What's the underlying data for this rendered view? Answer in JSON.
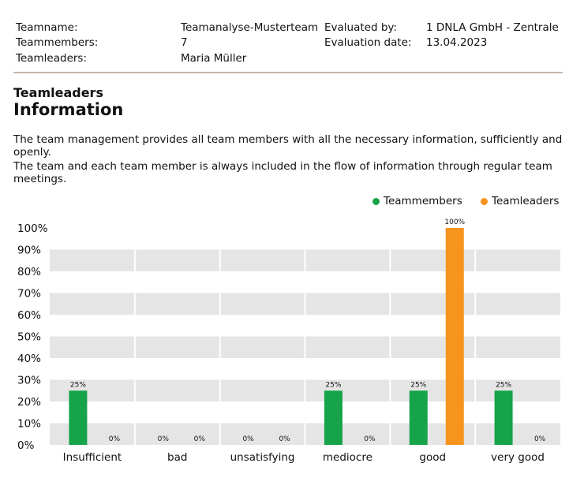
{
  "header": {
    "teamname_label": "Teamname:",
    "teamname_value": "Teamanalyse-Musterteam",
    "members_label": "Teammembers:",
    "members_value": "7",
    "leaders_label": "Teamleaders:",
    "leaders_value": "Maria Müller",
    "evaluated_label": "Evaluated by:",
    "evaluated_value": "1 DNLA GmbH - Zentrale",
    "date_label": "Evaluation date:",
    "date_value": "13.04.2023"
  },
  "section": {
    "subtitle": "Teamleaders",
    "title": "Information",
    "paragraphs": [
      "The team management provides all team members with all the necessary information, sufficiently and openly.",
      "The team and each team member is always included in the flow of information through regular team meetings."
    ]
  },
  "colors": {
    "teammembers": "#16a34a",
    "teamleaders": "#f7941d",
    "band": "#e5e5e5"
  },
  "chart_data": {
    "type": "bar",
    "categories": [
      "Insufficient",
      "bad",
      "unsatisfying",
      "mediocre",
      "good",
      "very good"
    ],
    "series": [
      {
        "name": "Teammembers",
        "values": [
          25,
          0,
          0,
          25,
          25,
          25
        ],
        "labels": [
          "25%",
          "0%",
          "0%",
          "25%",
          "25%",
          "25%"
        ]
      },
      {
        "name": "Teamleaders",
        "values": [
          0,
          0,
          0,
          0,
          100,
          0
        ],
        "labels": [
          "0%",
          "0%",
          "0%",
          "0%",
          "100%",
          "0%"
        ]
      }
    ],
    "ylim": [
      0,
      100
    ],
    "yticks": [
      "0%",
      "10%",
      "20%",
      "30%",
      "40%",
      "50%",
      "60%",
      "70%",
      "80%",
      "90%",
      "100%"
    ],
    "legend": "top-right",
    "grid": "alternating horizontal bands"
  }
}
